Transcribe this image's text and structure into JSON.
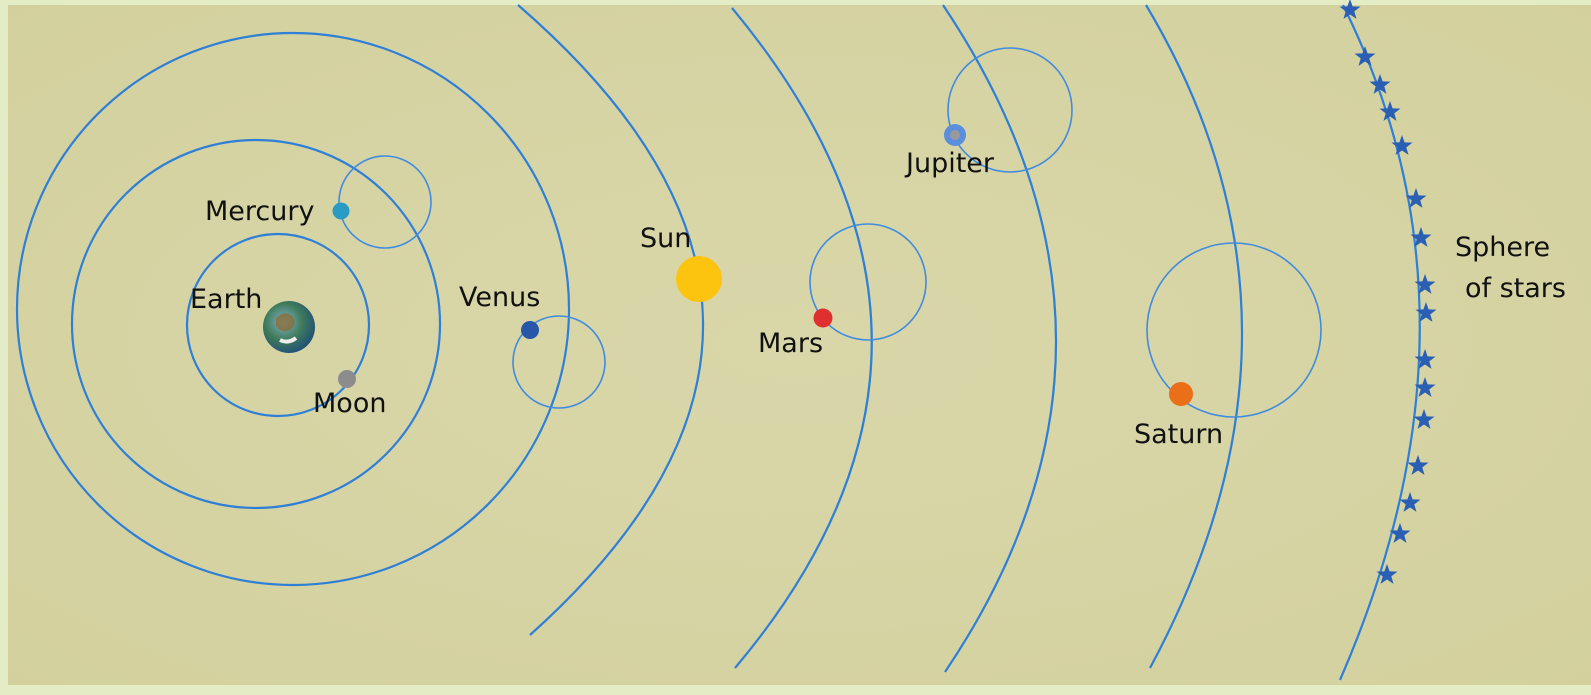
{
  "labels": {
    "earth": "Earth",
    "moon": "Moon",
    "mercury": "Mercury",
    "venus": "Venus",
    "sun": "Sun",
    "mars": "Mars",
    "jupiter": "Jupiter",
    "saturn": "Saturn",
    "sphere_line1": "Sphere",
    "sphere_line2": "of stars"
  }
}
